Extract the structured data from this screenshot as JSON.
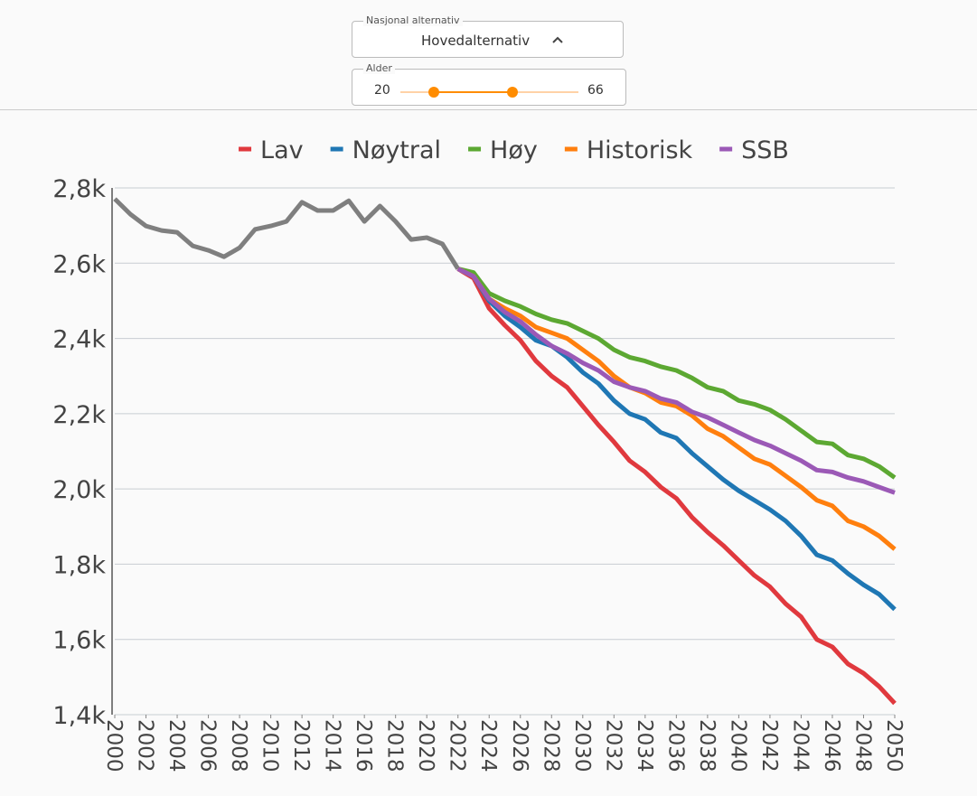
{
  "controls": {
    "dropdown": {
      "legend": "Nasjonal alternativ",
      "value": "Hovedalternativ"
    },
    "slider": {
      "legend": "Alder",
      "min": 20,
      "max": 66
    }
  },
  "chart_data": {
    "type": "line",
    "x": [
      2000,
      2001,
      2002,
      2003,
      2004,
      2005,
      2006,
      2007,
      2008,
      2009,
      2010,
      2011,
      2012,
      2013,
      2014,
      2015,
      2016,
      2017,
      2018,
      2019,
      2020,
      2021,
      2022,
      2023,
      2024,
      2025,
      2026,
      2027,
      2028,
      2029,
      2030,
      2031,
      2032,
      2033,
      2034,
      2035,
      2036,
      2037,
      2038,
      2039,
      2040,
      2041,
      2042,
      2043,
      2044,
      2045,
      2046,
      2047,
      2048,
      2049,
      2050
    ],
    "xlim": [
      2000,
      2050
    ],
    "xticks": [
      2000,
      2002,
      2004,
      2006,
      2008,
      2010,
      2012,
      2014,
      2016,
      2018,
      2020,
      2022,
      2024,
      2026,
      2028,
      2030,
      2032,
      2034,
      2036,
      2038,
      2040,
      2042,
      2044,
      2046,
      2048,
      2050
    ],
    "ylim": [
      1400,
      2800
    ],
    "yticks": [
      {
        "value": 1400,
        "label": "1,4k"
      },
      {
        "value": 1600,
        "label": "1,6k"
      },
      {
        "value": 1800,
        "label": "1,8k"
      },
      {
        "value": 2000,
        "label": "2,0k"
      },
      {
        "value": 2200,
        "label": "2,2k"
      },
      {
        "value": 2400,
        "label": "2,4k"
      },
      {
        "value": 2600,
        "label": "2,6k"
      },
      {
        "value": 2800,
        "label": "2,8k"
      }
    ],
    "grid": true,
    "legend": "top",
    "series": [
      {
        "color": "#7f7f7f",
        "values": [
          2771,
          2730,
          2699,
          2687,
          2682,
          2646,
          2634,
          2617,
          2641,
          2690,
          2699,
          2711,
          2762,
          2740,
          2740,
          2766,
          2711,
          2752,
          2711,
          2663,
          2668,
          2651,
          2585,
          null,
          null,
          null,
          null,
          null,
          null,
          null,
          null,
          null,
          null,
          null,
          null,
          null,
          null,
          null,
          null,
          null,
          null,
          null,
          null,
          null,
          null,
          null,
          null,
          null,
          null,
          null,
          null
        ]
      },
      {
        "name": "Lav",
        "color": "#e0393e",
        "values": [
          null,
          null,
          null,
          null,
          null,
          null,
          null,
          null,
          null,
          null,
          null,
          null,
          null,
          null,
          null,
          null,
          null,
          null,
          null,
          null,
          null,
          null,
          2585,
          2560,
          2480,
          2435,
          2395,
          2340,
          2300,
          2270,
          2220,
          2170,
          2125,
          2075,
          2045,
          2005,
          1975,
          1925,
          1885,
          1850,
          1810,
          1770,
          1740,
          1695,
          1660,
          1600,
          1580,
          1535,
          1510,
          1475,
          1430
        ]
      },
      {
        "name": "Nøytral",
        "color": "#1f77b4",
        "values": [
          null,
          null,
          null,
          null,
          null,
          null,
          null,
          null,
          null,
          null,
          null,
          null,
          null,
          null,
          null,
          null,
          null,
          null,
          null,
          null,
          null,
          null,
          2585,
          2565,
          2500,
          2460,
          2430,
          2395,
          2380,
          2350,
          2310,
          2280,
          2235,
          2200,
          2185,
          2150,
          2135,
          2095,
          2060,
          2025,
          1995,
          1970,
          1945,
          1915,
          1875,
          1825,
          1810,
          1775,
          1745,
          1720,
          1680
        ]
      },
      {
        "name": "Høy",
        "color": "#5ca832",
        "values": [
          null,
          null,
          null,
          null,
          null,
          null,
          null,
          null,
          null,
          null,
          null,
          null,
          null,
          null,
          null,
          null,
          null,
          null,
          null,
          null,
          null,
          null,
          2585,
          2575,
          2520,
          2500,
          2485,
          2465,
          2450,
          2440,
          2420,
          2400,
          2370,
          2350,
          2340,
          2325,
          2315,
          2295,
          2270,
          2260,
          2235,
          2225,
          2210,
          2185,
          2155,
          2125,
          2120,
          2090,
          2080,
          2060,
          2030
        ]
      },
      {
        "name": "Historisk",
        "color": "#ff7f0e",
        "values": [
          null,
          null,
          null,
          null,
          null,
          null,
          null,
          null,
          null,
          null,
          null,
          null,
          null,
          null,
          null,
          null,
          null,
          null,
          null,
          null,
          null,
          null,
          2585,
          2565,
          2505,
          2480,
          2460,
          2430,
          2415,
          2400,
          2370,
          2340,
          2300,
          2270,
          2255,
          2230,
          2220,
          2195,
          2160,
          2140,
          2110,
          2080,
          2065,
          2035,
          2005,
          1970,
          1955,
          1915,
          1900,
          1875,
          1840
        ]
      },
      {
        "name": "SSB",
        "color": "#9b59b6",
        "values": [
          null,
          null,
          null,
          null,
          null,
          null,
          null,
          null,
          null,
          null,
          null,
          null,
          null,
          null,
          null,
          null,
          null,
          null,
          null,
          null,
          null,
          null,
          2585,
          2565,
          2505,
          2470,
          2445,
          2410,
          2380,
          2360,
          2335,
          2315,
          2285,
          2270,
          2260,
          2240,
          2230,
          2205,
          2190,
          2170,
          2150,
          2130,
          2115,
          2095,
          2075,
          2050,
          2045,
          2030,
          2020,
          2005,
          1990
        ]
      }
    ]
  }
}
